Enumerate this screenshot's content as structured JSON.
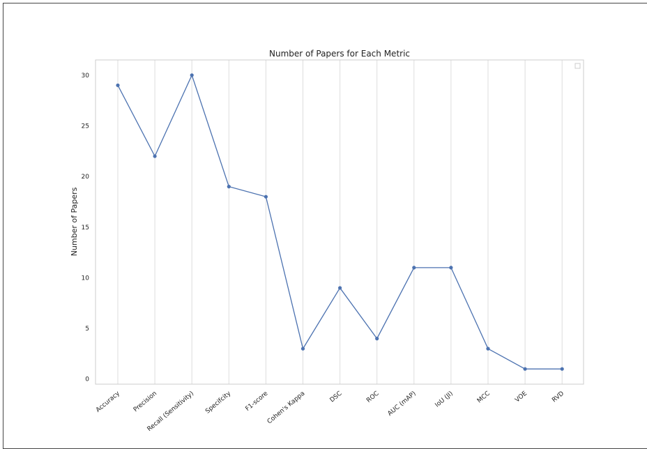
{
  "chart_data": {
    "type": "line",
    "title": "Number of Papers for Each Metric",
    "xlabel": "",
    "ylabel": "Number of Papers",
    "categories": [
      "Accuracy",
      "Precision",
      "Recall (Sensitivity)",
      "Specifcity",
      "F1-score",
      "Cohen's Kappa",
      "DSC",
      "ROC",
      "AUC (mAP)",
      "IoU (JI)",
      "MCC",
      "VOE",
      "RVD"
    ],
    "values": [
      29,
      22,
      30,
      19,
      18,
      3,
      9,
      4,
      11,
      11,
      3,
      1,
      1
    ],
    "yticks": [
      "0",
      "5",
      "10",
      "15",
      "20",
      "25",
      "30"
    ],
    "ylim": [
      -0.5,
      31.5
    ],
    "grid": "vertical",
    "legend": "top-right (empty)",
    "line_color": "#4c72b0"
  }
}
